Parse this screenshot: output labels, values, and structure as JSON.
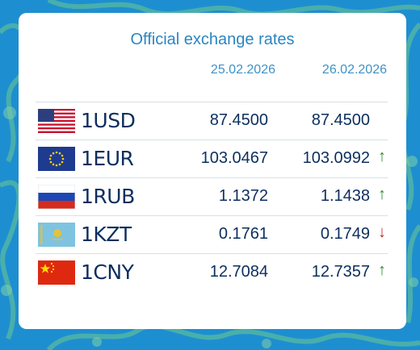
{
  "widget": {
    "title": "Official exchange rates",
    "dates": [
      "25.02.2026",
      "26.02.2026"
    ]
  },
  "colors": {
    "accent": "#2a86c2",
    "text": "#0c2e5e",
    "up": "#2e8b2e",
    "down": "#c62828"
  },
  "rows": [
    {
      "code": "1USD",
      "flag": "us-flag-icon",
      "rate_prev": "87.4500",
      "rate_curr": "87.4500",
      "trend": "",
      "trend_icon": ""
    },
    {
      "code": "1EUR",
      "flag": "eu-flag-icon",
      "rate_prev": "103.0467",
      "rate_curr": "103.0992",
      "trend": "↑",
      "trend_icon": "arrow-up-icon"
    },
    {
      "code": "1RUB",
      "flag": "ru-flag-icon",
      "rate_prev": "1.1372",
      "rate_curr": "1.1438",
      "trend": "↑",
      "trend_icon": "arrow-up-icon"
    },
    {
      "code": "1KZT",
      "flag": "kz-flag-icon",
      "rate_prev": "0.1761",
      "rate_curr": "0.1749",
      "trend": "↓",
      "trend_icon": "arrow-down-icon"
    },
    {
      "code": "1CNY",
      "flag": "cn-flag-icon",
      "rate_prev": "12.7084",
      "rate_curr": "12.7357",
      "trend": "↑",
      "trend_icon": "arrow-up-icon"
    }
  ]
}
